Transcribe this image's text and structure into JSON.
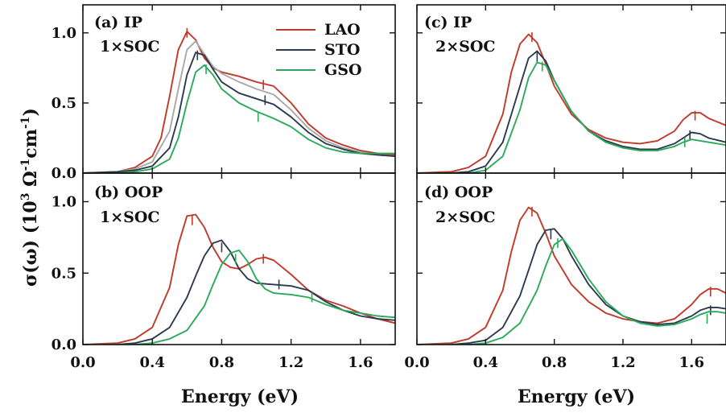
{
  "colors": {
    "LAO": "#c0392b",
    "STO": "#2c3a4e",
    "GSO": "#2aaa5a",
    "extra": "#a9a9a9"
  },
  "x_axis": {
    "label": "Energy (eV)",
    "ticks": [
      "0.0",
      "0.4",
      "0.8",
      "1.2",
      "1.6"
    ],
    "range": [
      0.0,
      1.8
    ]
  },
  "y_axis": {
    "label_main": "σ(ω) (10",
    "label_sup1": "3",
    "label_mid": " Ω",
    "label_sup2": "-1",
    "label_cm": "cm",
    "label_sup3": "-1",
    "label_end": ")",
    "ticks": [
      "0.0",
      "0.5",
      "1.0"
    ],
    "range": [
      0.0,
      1.2
    ]
  },
  "legend": {
    "placement": "top-right of panel (a)",
    "entries": [
      "LAO",
      "STO",
      "GSO"
    ]
  },
  "panels": {
    "a": {
      "label_line1": "(a) IP",
      "label_line2": "1×SOC"
    },
    "b": {
      "label_line1": "(b) OOP",
      "label_line2": "1×SOC"
    },
    "c": {
      "label_line1": "(c) IP",
      "label_line2": "2×SOC"
    },
    "d": {
      "label_line1": "(d) OOP",
      "label_line2": "2×SOC"
    }
  },
  "chart_data": [
    {
      "type": "line",
      "panel": "a",
      "title": "(a) IP 1×SOC",
      "xlabel": "Energy (eV)",
      "ylabel": "σ(ω) (10^3 Ω^-1 cm^-1)",
      "xlim": [
        0.0,
        1.8
      ],
      "ylim": [
        0.0,
        1.2
      ],
      "series": [
        {
          "name": "LAO",
          "color": "#c0392b",
          "x": [
            0.0,
            0.2,
            0.3,
            0.4,
            0.45,
            0.5,
            0.55,
            0.6,
            0.65,
            0.7,
            0.75,
            0.8,
            0.9,
            1.0,
            1.1,
            1.2,
            1.3,
            1.4,
            1.5,
            1.6,
            1.7,
            1.8
          ],
          "y": [
            0.0,
            0.01,
            0.04,
            0.12,
            0.25,
            0.55,
            0.88,
            1.01,
            0.95,
            0.82,
            0.75,
            0.72,
            0.69,
            0.65,
            0.62,
            0.5,
            0.35,
            0.25,
            0.2,
            0.16,
            0.14,
            0.13
          ],
          "peaks": [
            [
              0.6,
              1.0
            ],
            [
              1.04,
              0.63
            ]
          ]
        },
        {
          "name": "",
          "color": "#a9a9a9",
          "x": [
            0.0,
            0.2,
            0.3,
            0.4,
            0.5,
            0.55,
            0.6,
            0.65,
            0.7,
            0.75,
            0.8,
            0.9,
            1.0,
            1.1,
            1.2,
            1.3,
            1.4,
            1.5,
            1.6,
            1.7,
            1.8
          ],
          "y": [
            0.0,
            0.01,
            0.03,
            0.08,
            0.3,
            0.6,
            0.88,
            0.94,
            0.85,
            0.76,
            0.71,
            0.65,
            0.6,
            0.56,
            0.45,
            0.32,
            0.23,
            0.18,
            0.15,
            0.13,
            0.12
          ],
          "peaks": []
        },
        {
          "name": "STO",
          "color": "#2c3a4e",
          "x": [
            0.0,
            0.2,
            0.3,
            0.4,
            0.5,
            0.55,
            0.6,
            0.65,
            0.7,
            0.75,
            0.8,
            0.9,
            1.0,
            1.1,
            1.2,
            1.3,
            1.4,
            1.5,
            1.6,
            1.7,
            1.8
          ],
          "y": [
            0.0,
            0.01,
            0.02,
            0.05,
            0.18,
            0.4,
            0.7,
            0.86,
            0.84,
            0.74,
            0.65,
            0.57,
            0.53,
            0.49,
            0.4,
            0.29,
            0.21,
            0.17,
            0.14,
            0.13,
            0.12
          ],
          "peaks": [
            [
              0.66,
              0.84
            ],
            [
              1.05,
              0.52
            ]
          ]
        },
        {
          "name": "GSO",
          "color": "#2aaa5a",
          "x": [
            0.0,
            0.2,
            0.3,
            0.4,
            0.5,
            0.55,
            0.6,
            0.65,
            0.7,
            0.75,
            0.8,
            0.9,
            1.0,
            1.1,
            1.2,
            1.3,
            1.4,
            1.5,
            1.6,
            1.7,
            1.8
          ],
          "y": [
            0.0,
            0.0,
            0.01,
            0.03,
            0.1,
            0.25,
            0.5,
            0.72,
            0.77,
            0.7,
            0.6,
            0.5,
            0.44,
            0.39,
            0.33,
            0.24,
            0.18,
            0.15,
            0.14,
            0.14,
            0.14
          ],
          "peaks": [
            [
              0.71,
              0.74
            ],
            [
              1.01,
              0.4
            ]
          ]
        }
      ]
    },
    {
      "type": "line",
      "panel": "b",
      "title": "(b) OOP 1×SOC",
      "xlabel": "Energy (eV)",
      "ylabel": "σ(ω) (10^3 Ω^-1 cm^-1)",
      "xlim": [
        0.0,
        1.8
      ],
      "ylim": [
        0.0,
        1.2
      ],
      "series": [
        {
          "name": "LAO",
          "color": "#c0392b",
          "x": [
            0.0,
            0.2,
            0.3,
            0.4,
            0.5,
            0.55,
            0.6,
            0.65,
            0.7,
            0.75,
            0.8,
            0.85,
            0.9,
            0.95,
            1.0,
            1.05,
            1.1,
            1.2,
            1.3,
            1.4,
            1.5,
            1.6,
            1.7,
            1.8
          ],
          "y": [
            0.0,
            0.01,
            0.04,
            0.12,
            0.4,
            0.7,
            0.9,
            0.91,
            0.82,
            0.68,
            0.58,
            0.54,
            0.53,
            0.56,
            0.6,
            0.61,
            0.59,
            0.49,
            0.38,
            0.31,
            0.27,
            0.22,
            0.18,
            0.15
          ],
          "peaks": [
            [
              0.63,
              0.87
            ],
            [
              1.04,
              0.6
            ]
          ]
        },
        {
          "name": "STO",
          "color": "#2c3a4e",
          "x": [
            0.0,
            0.2,
            0.3,
            0.4,
            0.5,
            0.6,
            0.65,
            0.7,
            0.75,
            0.8,
            0.85,
            0.9,
            0.95,
            1.0,
            1.1,
            1.2,
            1.3,
            1.4,
            1.5,
            1.6,
            1.7,
            1.8
          ],
          "y": [
            0.0,
            0.0,
            0.01,
            0.04,
            0.12,
            0.33,
            0.48,
            0.62,
            0.71,
            0.73,
            0.65,
            0.53,
            0.46,
            0.43,
            0.42,
            0.41,
            0.38,
            0.3,
            0.24,
            0.2,
            0.18,
            0.17
          ],
          "peaks": [
            [
              0.8,
              0.68
            ],
            [
              1.13,
              0.42
            ]
          ]
        },
        {
          "name": "GSO",
          "color": "#2aaa5a",
          "x": [
            0.0,
            0.2,
            0.3,
            0.4,
            0.5,
            0.6,
            0.7,
            0.75,
            0.8,
            0.85,
            0.9,
            0.95,
            1.0,
            1.05,
            1.1,
            1.2,
            1.3,
            1.4,
            1.5,
            1.6,
            1.7,
            1.8
          ],
          "y": [
            0.0,
            0.0,
            0.0,
            0.01,
            0.04,
            0.1,
            0.27,
            0.42,
            0.56,
            0.64,
            0.66,
            0.58,
            0.46,
            0.39,
            0.36,
            0.35,
            0.33,
            0.28,
            0.24,
            0.22,
            0.2,
            0.19
          ],
          "peaks": [
            [
              0.88,
              0.6
            ],
            [
              1.32,
              0.33
            ]
          ]
        }
      ]
    },
    {
      "type": "line",
      "panel": "c",
      "title": "(c) IP 2×SOC",
      "xlabel": "Energy (eV)",
      "ylabel": "σ(ω) (10^3 Ω^-1 cm^-1)",
      "xlim": [
        0.0,
        1.8
      ],
      "ylim": [
        0.0,
        1.2
      ],
      "series": [
        {
          "name": "LAO",
          "color": "#c0392b",
          "x": [
            0.0,
            0.2,
            0.3,
            0.4,
            0.5,
            0.55,
            0.6,
            0.65,
            0.7,
            0.75,
            0.8,
            0.9,
            1.0,
            1.1,
            1.2,
            1.3,
            1.4,
            1.5,
            1.55,
            1.6,
            1.65,
            1.7,
            1.8
          ],
          "y": [
            0.0,
            0.01,
            0.04,
            0.12,
            0.42,
            0.72,
            0.92,
            0.99,
            0.93,
            0.78,
            0.62,
            0.42,
            0.31,
            0.25,
            0.22,
            0.21,
            0.23,
            0.3,
            0.38,
            0.43,
            0.43,
            0.39,
            0.34
          ],
          "peaks": [
            [
              0.67,
              0.97
            ],
            [
              1.62,
              0.41
            ]
          ]
        },
        {
          "name": "STO",
          "color": "#2c3a4e",
          "x": [
            0.0,
            0.2,
            0.3,
            0.4,
            0.5,
            0.6,
            0.65,
            0.7,
            0.75,
            0.8,
            0.9,
            1.0,
            1.1,
            1.2,
            1.3,
            1.4,
            1.5,
            1.55,
            1.6,
            1.65,
            1.7,
            1.8
          ],
          "y": [
            0.0,
            0.0,
            0.01,
            0.05,
            0.22,
            0.62,
            0.82,
            0.87,
            0.8,
            0.66,
            0.44,
            0.3,
            0.23,
            0.19,
            0.17,
            0.17,
            0.21,
            0.25,
            0.29,
            0.28,
            0.25,
            0.22
          ],
          "peaks": [
            [
              0.7,
              0.83
            ],
            [
              1.59,
              0.27
            ]
          ]
        },
        {
          "name": "GSO",
          "color": "#2aaa5a",
          "x": [
            0.0,
            0.2,
            0.3,
            0.4,
            0.5,
            0.6,
            0.65,
            0.7,
            0.75,
            0.8,
            0.9,
            1.0,
            1.1,
            1.2,
            1.3,
            1.4,
            1.5,
            1.55,
            1.6,
            1.65,
            1.7,
            1.8
          ],
          "y": [
            0.0,
            0.0,
            0.0,
            0.02,
            0.12,
            0.45,
            0.68,
            0.79,
            0.77,
            0.66,
            0.44,
            0.3,
            0.22,
            0.18,
            0.16,
            0.16,
            0.19,
            0.22,
            0.24,
            0.23,
            0.22,
            0.2
          ],
          "peaks": [
            [
              0.73,
              0.76
            ],
            [
              1.56,
              0.22
            ]
          ]
        }
      ]
    },
    {
      "type": "line",
      "panel": "d",
      "title": "(d) OOP 2×SOC",
      "xlabel": "Energy (eV)",
      "ylabel": "σ(ω) (10^3 Ω^-1 cm^-1)",
      "xlim": [
        0.0,
        1.8
      ],
      "ylim": [
        0.0,
        1.2
      ],
      "series": [
        {
          "name": "LAO",
          "color": "#c0392b",
          "x": [
            0.0,
            0.2,
            0.3,
            0.4,
            0.5,
            0.55,
            0.6,
            0.65,
            0.7,
            0.75,
            0.8,
            0.9,
            1.0,
            1.1,
            1.2,
            1.3,
            1.4,
            1.5,
            1.6,
            1.65,
            1.7,
            1.75,
            1.8
          ],
          "y": [
            0.0,
            0.01,
            0.04,
            0.12,
            0.38,
            0.65,
            0.87,
            0.96,
            0.92,
            0.78,
            0.62,
            0.42,
            0.3,
            0.22,
            0.18,
            0.16,
            0.15,
            0.18,
            0.28,
            0.35,
            0.39,
            0.39,
            0.36
          ],
          "peaks": [
            [
              0.67,
              0.93
            ],
            [
              1.71,
              0.37
            ]
          ]
        },
        {
          "name": "STO",
          "color": "#2c3a4e",
          "x": [
            0.0,
            0.2,
            0.3,
            0.4,
            0.5,
            0.6,
            0.65,
            0.7,
            0.75,
            0.8,
            0.85,
            0.9,
            1.0,
            1.1,
            1.2,
            1.3,
            1.4,
            1.5,
            1.6,
            1.65,
            1.7,
            1.75,
            1.8
          ],
          "y": [
            0.0,
            0.0,
            0.01,
            0.03,
            0.12,
            0.34,
            0.52,
            0.7,
            0.8,
            0.81,
            0.74,
            0.62,
            0.42,
            0.28,
            0.2,
            0.16,
            0.14,
            0.15,
            0.2,
            0.24,
            0.26,
            0.26,
            0.25
          ],
          "peaks": [
            [
              0.78,
              0.77
            ],
            [
              1.71,
              0.24
            ]
          ]
        },
        {
          "name": "GSO",
          "color": "#2aaa5a",
          "x": [
            0.0,
            0.2,
            0.3,
            0.4,
            0.5,
            0.6,
            0.7,
            0.75,
            0.8,
            0.85,
            0.9,
            1.0,
            1.1,
            1.2,
            1.3,
            1.4,
            1.5,
            1.6,
            1.65,
            1.7,
            1.75,
            1.8
          ],
          "y": [
            0.0,
            0.0,
            0.0,
            0.01,
            0.05,
            0.15,
            0.38,
            0.55,
            0.7,
            0.74,
            0.66,
            0.46,
            0.3,
            0.2,
            0.15,
            0.13,
            0.14,
            0.18,
            0.21,
            0.23,
            0.23,
            0.22
          ],
          "peaks": [
            [
              0.82,
              0.71
            ],
            [
              1.69,
              0.18
            ]
          ]
        }
      ]
    }
  ]
}
